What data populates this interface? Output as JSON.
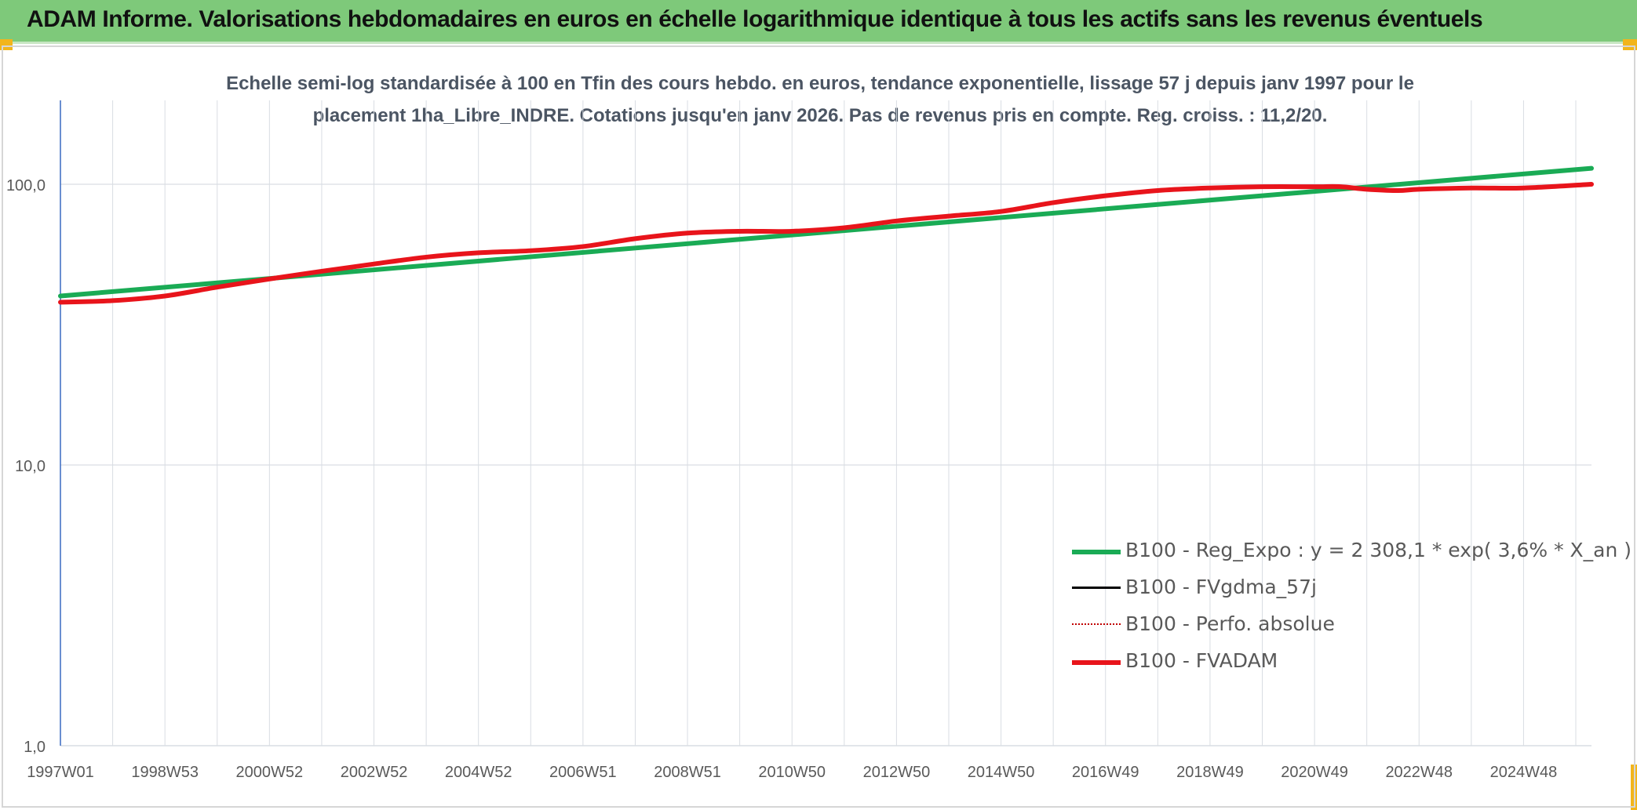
{
  "header": {
    "title": "ADAM Informe. Valorisations hebdomadaires en euros en échelle logarithmique identique à tous les actifs sans les revenus éventuels"
  },
  "colors": {
    "header_bg": "#7ec97a",
    "reg_expo": "#1aab55",
    "fvgdma": "#000000",
    "perfo": "#c00000",
    "fvadam": "#e8141b"
  },
  "chart_data": {
    "type": "line",
    "title_lines": [
      "Echelle semi-log standardisée à 100 en Tfin des cours hebdo. en euros, tendance exponentielle, lissage 57 j depuis janv 1997 pour le",
      "placement 1ha_Libre_INDRE. Cotations jusqu'en janv 2026. Pas de revenus pris en compte. Reg. croiss. : 11,2/20."
    ],
    "y_scale": "log",
    "ylim": [
      1,
      200
    ],
    "y_ticks": [
      {
        "value": 1,
        "label": "1,0"
      },
      {
        "value": 10,
        "label": "10,0"
      },
      {
        "value": 100,
        "label": "100,0"
      }
    ],
    "xlim": [
      1997.0,
      2026.3
    ],
    "x_ticks": [
      {
        "value": 1997.0,
        "label": "1997W01"
      },
      {
        "value": 1999.0,
        "label": "1998W53"
      },
      {
        "value": 2001.0,
        "label": "2000W52"
      },
      {
        "value": 2003.0,
        "label": "2002W52"
      },
      {
        "value": 2005.0,
        "label": "2004W52"
      },
      {
        "value": 2007.0,
        "label": "2006W51"
      },
      {
        "value": 2009.0,
        "label": "2008W51"
      },
      {
        "value": 2011.0,
        "label": "2010W50"
      },
      {
        "value": 2013.0,
        "label": "2012W50"
      },
      {
        "value": 2015.0,
        "label": "2014W50"
      },
      {
        "value": 2017.0,
        "label": "2016W49"
      },
      {
        "value": 2019.0,
        "label": "2018W49"
      },
      {
        "value": 2021.0,
        "label": "2020W49"
      },
      {
        "value": 2023.0,
        "label": "2022W48"
      },
      {
        "value": 2025.0,
        "label": "2024W48"
      }
    ],
    "grid": true,
    "legend_position": "bottom-right",
    "series": [
      {
        "name": "B100 - Reg_Expo : y = 2 308,1 * exp( 3,6% *  X_an )",
        "color_key": "reg_expo",
        "style": "solid",
        "x": [
          1997.0,
          2026.3
        ],
        "y": [
          40.0,
          114.0
        ]
      },
      {
        "name": "B100 - FVgdma_57j",
        "color_key": "fvgdma",
        "style": "solid",
        "x": [],
        "y": []
      },
      {
        "name": "B100 - Perfo. absolue",
        "color_key": "perfo",
        "style": "dotted",
        "x": [],
        "y": []
      },
      {
        "name": "B100 - FVADAM",
        "color_key": "fvadam",
        "style": "solid",
        "x": [
          1997.0,
          1998.0,
          1999.0,
          2000.0,
          2001.0,
          2002.0,
          2003.0,
          2004.0,
          2005.0,
          2006.0,
          2007.0,
          2008.0,
          2009.0,
          2010.0,
          2011.0,
          2012.0,
          2013.0,
          2014.0,
          2015.0,
          2016.0,
          2017.0,
          2018.0,
          2019.0,
          2020.0,
          2021.0,
          2021.5,
          2022.0,
          2022.6,
          2023.0,
          2024.0,
          2025.0,
          2026.3
        ],
        "y": [
          38.0,
          38.5,
          40.0,
          43.0,
          46.0,
          49.0,
          52.0,
          55.0,
          57.0,
          58.0,
          60.0,
          64.0,
          67.0,
          68.0,
          68.0,
          70.0,
          74.0,
          77.0,
          80.0,
          86.0,
          91.0,
          95.0,
          97.0,
          98.0,
          98.0,
          98.0,
          96.0,
          95.0,
          96.0,
          97.0,
          97.0,
          100.0
        ]
      }
    ]
  }
}
